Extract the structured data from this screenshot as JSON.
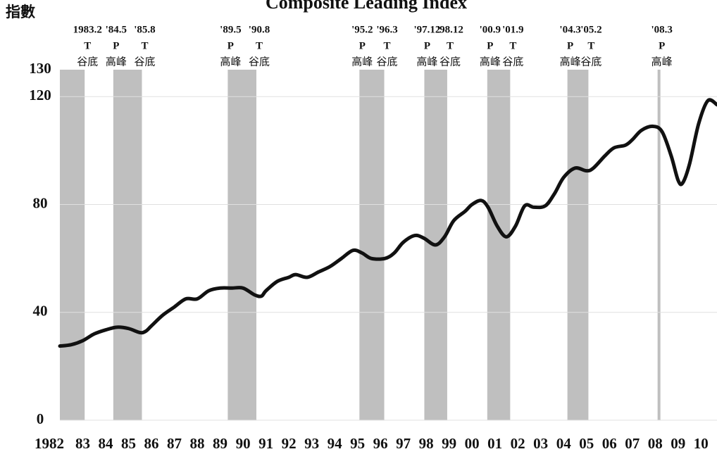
{
  "chart_data": {
    "type": "line",
    "title": "Composite Leading Index",
    "y_label": "指數",
    "x": [
      1982.0,
      1982.5,
      1983.0,
      1983.5,
      1984.0,
      1984.5,
      1985.0,
      1985.5,
      1985.75,
      1986.0,
      1986.5,
      1987.0,
      1987.5,
      1988.0,
      1988.5,
      1989.0,
      1989.5,
      1990.0,
      1990.5,
      1990.8,
      1991.0,
      1991.5,
      1992.0,
      1992.3,
      1992.8,
      1993.3,
      1993.8,
      1994.3,
      1994.8,
      1995.2,
      1995.6,
      1996.2,
      1996.6,
      1997.0,
      1997.5,
      1997.9,
      1998.4,
      1998.8,
      1999.2,
      1999.7,
      2000.0,
      2000.4,
      2000.7,
      2001.1,
      2001.5,
      2001.9,
      2002.3,
      2002.7,
      2003.2,
      2003.6,
      2004.0,
      2004.5,
      2005.0,
      2005.3,
      2005.8,
      2006.2,
      2006.7,
      2007.0,
      2007.4,
      2007.9,
      2008.3,
      2008.7,
      2009.0,
      2009.2,
      2009.5,
      2009.9,
      2010.3,
      2010.7
    ],
    "series": [
      {
        "name": "Composite Leading Index",
        "color": "#111111",
        "values": [
          27.5,
          28,
          29.5,
          32,
          33.5,
          34.5,
          34,
          32.5,
          33,
          35,
          39,
          42,
          45,
          45,
          48,
          49,
          49,
          49,
          46.5,
          46,
          48,
          51.5,
          53,
          54,
          53,
          55,
          57,
          60,
          63,
          62,
          60,
          60,
          62,
          66,
          68.5,
          67.5,
          65,
          68,
          74,
          77.5,
          80,
          81.5,
          79,
          72,
          68,
          72,
          79.5,
          79,
          79.5,
          84,
          90,
          93.5,
          92.5,
          93.5,
          98,
          101,
          102,
          104,
          107.5,
          109,
          107,
          98,
          89,
          88,
          95,
          110,
          118.5,
          117
        ]
      }
    ],
    "xlim": [
      1982,
      2010.7
    ],
    "xticks": [
      {
        "value": 1982,
        "label": "1982"
      },
      {
        "value": 1983,
        "label": "83"
      },
      {
        "value": 1984,
        "label": "84"
      },
      {
        "value": 1985,
        "label": "85"
      },
      {
        "value": 1986,
        "label": "86"
      },
      {
        "value": 1987,
        "label": "87"
      },
      {
        "value": 1988,
        "label": "88"
      },
      {
        "value": 1989,
        "label": "89"
      },
      {
        "value": 1990,
        "label": "90"
      },
      {
        "value": 1991,
        "label": "91"
      },
      {
        "value": 1992,
        "label": "92"
      },
      {
        "value": 1993,
        "label": "93"
      },
      {
        "value": 1994,
        "label": "94"
      },
      {
        "value": 1995,
        "label": "95"
      },
      {
        "value": 1996,
        "label": "96"
      },
      {
        "value": 1997,
        "label": "97"
      },
      {
        "value": 1998,
        "label": "98"
      },
      {
        "value": 1999,
        "label": "99"
      },
      {
        "value": 2000,
        "label": "00"
      },
      {
        "value": 2001,
        "label": "01"
      },
      {
        "value": 2002,
        "label": "02"
      },
      {
        "value": 2003,
        "label": "03"
      },
      {
        "value": 2004,
        "label": "04"
      },
      {
        "value": 2005,
        "label": "05"
      },
      {
        "value": 2006,
        "label": "06"
      },
      {
        "value": 2007,
        "label": "07"
      },
      {
        "value": 2008,
        "label": "08"
      },
      {
        "value": 2009,
        "label": "09"
      },
      {
        "value": 2010,
        "label": "10"
      }
    ],
    "ylim": [
      0,
      130
    ],
    "yticks": [
      0,
      40,
      80,
      120,
      130
    ],
    "grid": true,
    "band_color": "#bfbfbf",
    "turning_points": [
      {
        "date": "1983.2",
        "type": "T",
        "label": "谷底",
        "x": 1983.083
      },
      {
        "date": "'84.5",
        "type": "P",
        "label": "高峰",
        "x": 1984.333
      },
      {
        "date": "'85.8",
        "type": "T",
        "label": "谷底",
        "x": 1985.583
      },
      {
        "date": "'89.5",
        "type": "P",
        "label": "高峰",
        "x": 1989.333
      },
      {
        "date": "'90.8",
        "type": "T",
        "label": "谷底",
        "x": 1990.583
      },
      {
        "date": "'95.2",
        "type": "P",
        "label": "高峰",
        "x": 1995.083
      },
      {
        "date": "'96.3",
        "type": "T",
        "label": "谷底",
        "x": 1996.167
      },
      {
        "date": "'97.12",
        "type": "P",
        "label": "高峰",
        "x": 1997.917
      },
      {
        "date": "'98.12",
        "type": "T",
        "label": "谷底",
        "x": 1998.917
      },
      {
        "date": "'00.9",
        "type": "P",
        "label": "高峰",
        "x": 2000.667
      },
      {
        "date": "'01.9",
        "type": "T",
        "label": "谷底",
        "x": 2001.667
      },
      {
        "date": "'04.3",
        "type": "P",
        "label": "高峰",
        "x": 2004.167
      },
      {
        "date": "'05.2",
        "type": "T",
        "label": "谷底",
        "x": 2005.083
      },
      {
        "date": "'08.3",
        "type": "P",
        "label": "高峰",
        "x": 2008.167
      }
    ]
  }
}
